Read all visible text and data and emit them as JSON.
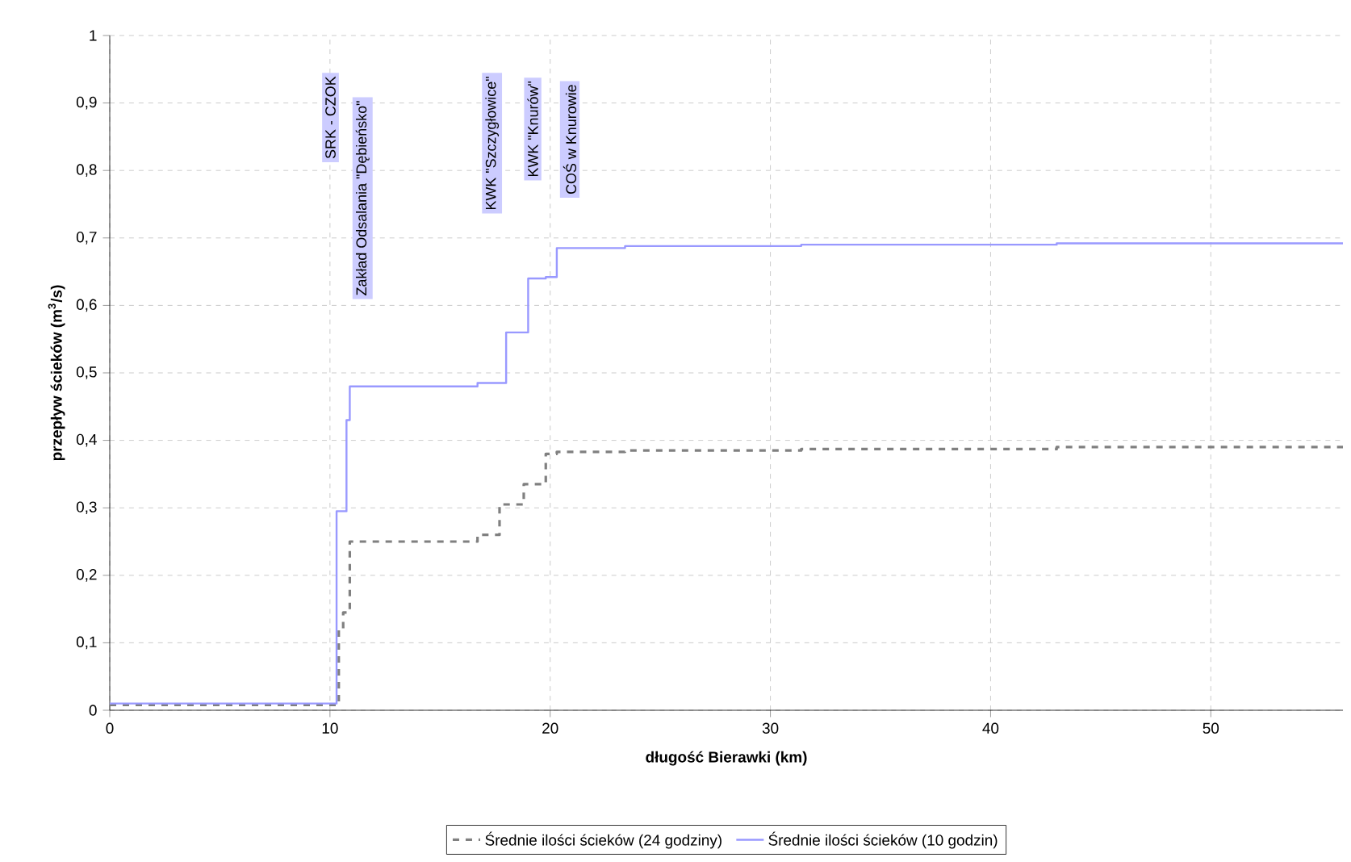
{
  "chart_data": {
    "type": "step",
    "xlabel": "długość Bierawki (km)",
    "ylabel": "przepływ ścieków (m$^{3}$/s)",
    "xlim": [
      0,
      56
    ],
    "ylim": [
      0,
      1
    ],
    "xticks": [
      0,
      10,
      20,
      30,
      40,
      50
    ],
    "yticks": [
      0,
      {
        "value": 0.1,
        "label": "0,1"
      },
      {
        "value": 0.2,
        "label": "0,2"
      },
      {
        "value": 0.3,
        "label": "0,3"
      },
      {
        "value": 0.4,
        "label": "0,4"
      },
      {
        "value": 0.5,
        "label": "0,5"
      },
      {
        "value": 0.6,
        "label": "0,6"
      },
      {
        "value": 0.7,
        "label": "0,7"
      },
      {
        "value": 0.8,
        "label": "0,8"
      },
      {
        "value": 0.9,
        "label": "0,9"
      },
      1
    ],
    "grid": true,
    "legend": "bottom",
    "series": [
      {
        "name": "Średnie ilości ścieków (24 godziny)",
        "color": "#808080",
        "line_style": "dashed",
        "x": [
          0,
          10.4,
          10.6,
          10.9,
          16.7,
          17.7,
          18.8,
          19.8,
          20.3,
          23.4,
          31.4,
          43.0,
          56
        ],
        "values": [
          0.008,
          0.12,
          0.145,
          0.25,
          0.26,
          0.305,
          0.335,
          0.38,
          0.383,
          0.385,
          0.387,
          0.39,
          0.39
        ]
      },
      {
        "name": "Średnie ilości ścieków (10 godzin)",
        "color": "#9999ff",
        "line_style": "solid",
        "x": [
          0,
          10.3,
          10.75,
          10.9,
          16.7,
          18.0,
          19.0,
          19.8,
          20.3,
          23.4,
          31.4,
          43.0,
          56
        ],
        "values": [
          0.01,
          0.295,
          0.43,
          0.48,
          0.485,
          0.56,
          0.64,
          0.642,
          0.685,
          0.688,
          0.69,
          0.692,
          0.692
        ]
      }
    ],
    "annotations": [
      "SRK - CZOK",
      "Zakład Odsalania \"Dębieńsko\"",
      "KWK \"Szczygłowice\"",
      "KWK \"Knurów\"",
      "COŚ w Knurowie"
    ]
  }
}
